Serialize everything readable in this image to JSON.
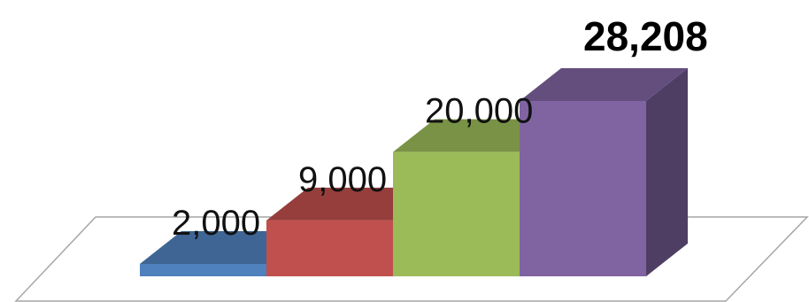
{
  "chart_data": {
    "type": "bar",
    "style": "3d",
    "categories": [
      "",
      "",
      "",
      ""
    ],
    "series": [
      {
        "values": [
          2000,
          9000,
          20000,
          28208
        ]
      }
    ],
    "data_labels": [
      "2,000",
      "9,000",
      "20,000",
      "28,208"
    ],
    "highlighted_label_index": 3,
    "colors": [
      "#4f81bd",
      "#c0504d",
      "#9bbb59",
      "#8064a2"
    ],
    "ylim": [
      0,
      30000
    ],
    "axes_visible": false,
    "grid": false,
    "legend": "none"
  }
}
